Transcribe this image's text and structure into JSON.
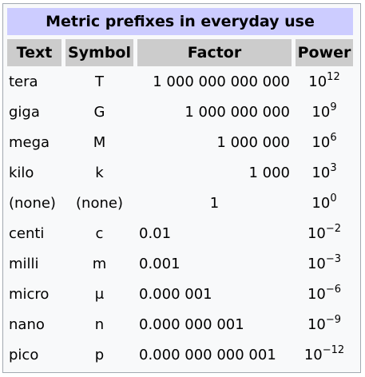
{
  "table": {
    "caption": "Metric prefixes in everyday use",
    "headers": {
      "text": "Text",
      "symbol": "Symbol",
      "factor": "Factor",
      "power": "Power"
    },
    "rows": [
      {
        "text": "tera",
        "symbol": "T",
        "factor": "1 000 000 000 000",
        "factor_align": "right",
        "power_base": "10",
        "power_exp": "12"
      },
      {
        "text": "giga",
        "symbol": "G",
        "factor": "1 000 000 000",
        "factor_align": "right",
        "power_base": "10",
        "power_exp": "9"
      },
      {
        "text": "mega",
        "symbol": "M",
        "factor": "1 000 000",
        "factor_align": "right",
        "power_base": "10",
        "power_exp": "6"
      },
      {
        "text": "kilo",
        "symbol": "k",
        "factor": "1 000",
        "factor_align": "right",
        "power_base": "10",
        "power_exp": "3"
      },
      {
        "text": "(none)",
        "symbol": "(none)",
        "factor": "1",
        "factor_align": "center",
        "power_base": "10",
        "power_exp": "0"
      },
      {
        "text": "centi",
        "symbol": "c",
        "factor": "0.01",
        "factor_align": "left",
        "power_base": "10",
        "power_exp": "−2"
      },
      {
        "text": "milli",
        "symbol": "m",
        "factor": "0.001",
        "factor_align": "left",
        "power_base": "10",
        "power_exp": "−3"
      },
      {
        "text": "micro",
        "symbol": "μ",
        "factor": "0.000 001",
        "factor_align": "left",
        "power_base": "10",
        "power_exp": "−6"
      },
      {
        "text": "nano",
        "symbol": "n",
        "factor": "0.000 000 001",
        "factor_align": "left",
        "power_base": "10",
        "power_exp": "−9"
      },
      {
        "text": "pico",
        "symbol": "p",
        "factor": "0.000 000 000 001",
        "factor_align": "left",
        "power_base": "10",
        "power_exp": "−12"
      }
    ]
  },
  "colors": {
    "caption_bg": "#ccccff",
    "header_bg": "#cccccc",
    "table_bg": "#f8f9fa",
    "border": "#a2a9b1"
  }
}
